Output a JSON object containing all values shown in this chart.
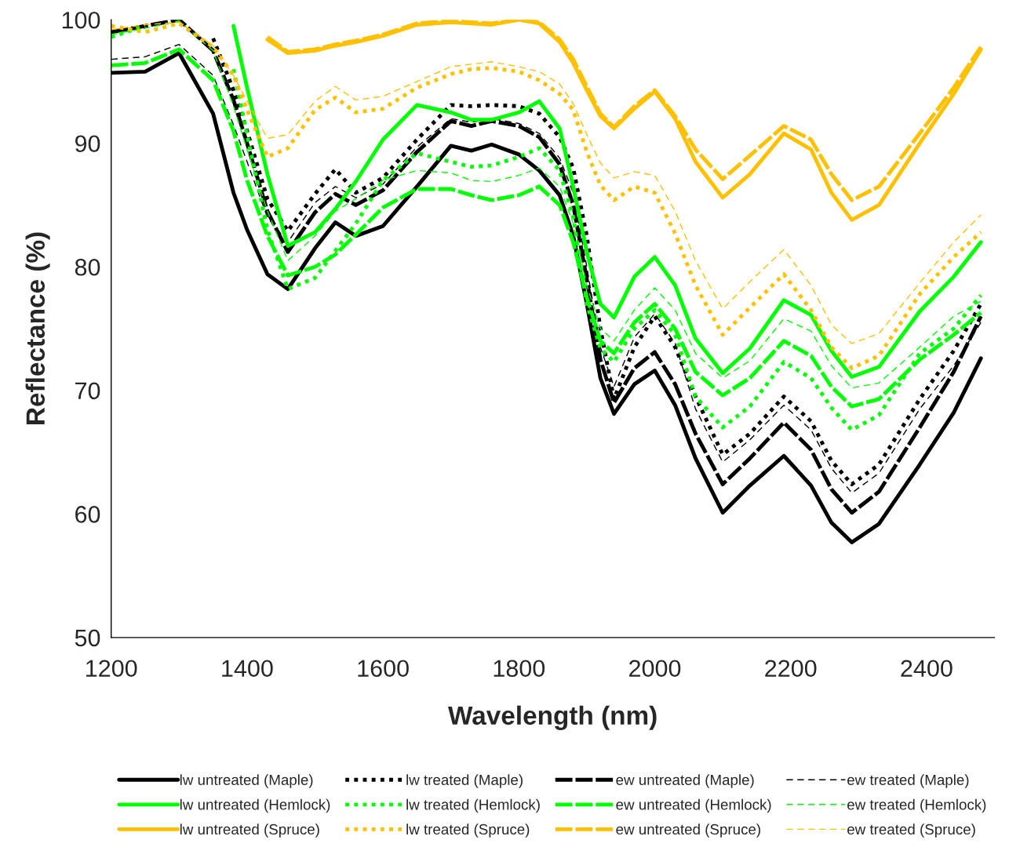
{
  "chart_data": {
    "type": "line",
    "xlabel": "Wavelength (nm)",
    "ylabel": "Reflectance (%)",
    "x": [
      1200,
      1250,
      1300,
      1350,
      1380,
      1400,
      1430,
      1460,
      1500,
      1530,
      1560,
      1600,
      1650,
      1700,
      1730,
      1760,
      1800,
      1830,
      1860,
      1880,
      1900,
      1920,
      1940,
      1970,
      2000,
      2030,
      2060,
      2100,
      2140,
      2190,
      2230,
      2260,
      2290,
      2330,
      2390,
      2440,
      2480
    ],
    "xlim": [
      1200,
      2500
    ],
    "xticks": [
      1200,
      1400,
      1600,
      1800,
      2000,
      2200,
      2400
    ],
    "ylim": [
      50,
      100
    ],
    "yticks": [
      50,
      60,
      70,
      80,
      90,
      100
    ],
    "grid": false,
    "legend": "bottom",
    "series": [
      {
        "name": "lw untreated (Maple)",
        "color": "#000000",
        "line_style": "solid",
        "values": [
          95.7,
          95.8,
          97.3,
          92.4,
          86.0,
          83.0,
          79.4,
          78.2,
          81.5,
          83.6,
          82.5,
          83.3,
          86.5,
          89.8,
          89.4,
          89.9,
          89.1,
          87.8,
          85.8,
          82.5,
          77.0,
          71.0,
          68.1,
          70.5,
          71.6,
          68.8,
          64.5,
          60.1,
          62.3,
          64.7,
          62.3,
          59.3,
          57.7,
          59.2,
          64.0,
          68.2,
          72.6
        ]
      },
      {
        "name": "lw treated (Maple)",
        "color": "#000000",
        "line_style": "dotted",
        "values": [
          null,
          null,
          null,
          98.5,
          94.3,
          91.0,
          85.5,
          82.9,
          85.9,
          87.9,
          86.0,
          87.2,
          90.3,
          93.1,
          93.0,
          93.1,
          93.0,
          92.4,
          90.5,
          88.0,
          82.5,
          75.0,
          69.3,
          73.5,
          76.0,
          73.5,
          69.5,
          64.8,
          66.5,
          69.5,
          67.5,
          64.3,
          62.4,
          64.0,
          69.3,
          73.2,
          77.0
        ]
      },
      {
        "name": "ew untreated (Maple)",
        "color": "#000000",
        "line_style": "dashed",
        "values": [
          99.0,
          99.5,
          100.0,
          97.5,
          93.5,
          90.0,
          84.5,
          81.2,
          84.4,
          85.9,
          85.0,
          86.2,
          89.3,
          91.8,
          91.4,
          91.8,
          91.4,
          90.5,
          88.3,
          85.0,
          79.0,
          72.5,
          69.0,
          71.8,
          73.1,
          70.5,
          66.5,
          62.4,
          64.5,
          67.4,
          65.2,
          62.0,
          60.1,
          61.8,
          67.0,
          71.5,
          76.0
        ]
      },
      {
        "name": "ew treated (Maple)",
        "color": "#000000",
        "line_style": "dashed",
        "values": [
          96.8,
          97.0,
          98.0,
          95.5,
          91.5,
          88.5,
          84.0,
          82.0,
          85.2,
          86.5,
          85.6,
          86.7,
          89.7,
          92.0,
          91.7,
          92.0,
          91.6,
          90.8,
          88.8,
          86.0,
          80.0,
          73.5,
          70.3,
          74.3,
          76.2,
          73.8,
          68.5,
          64.2,
          66.0,
          68.8,
          66.8,
          63.7,
          61.7,
          63.3,
          68.5,
          72.0,
          75.5
        ]
      },
      {
        "name": "lw untreated (Hemlock)",
        "color": "#00ff00",
        "line_style": "solid",
        "values": [
          null,
          null,
          null,
          null,
          99.5,
          94.5,
          87.5,
          81.7,
          82.8,
          84.7,
          86.9,
          90.3,
          93.1,
          92.5,
          91.9,
          91.9,
          92.5,
          93.4,
          91.2,
          86.5,
          81.2,
          77.0,
          75.9,
          79.2,
          80.8,
          78.5,
          74.2,
          71.4,
          73.4,
          77.3,
          76.1,
          73.2,
          71.1,
          71.9,
          76.4,
          79.2,
          82.0
        ]
      },
      {
        "name": "lw treated (Hemlock)",
        "color": "#00ff00",
        "line_style": "dotted",
        "values": [
          98.6,
          99.5,
          null,
          null,
          96.0,
          90.7,
          83.0,
          78.2,
          79.1,
          81.3,
          83.5,
          87.0,
          89.2,
          88.5,
          88.1,
          88.2,
          88.9,
          89.6,
          87.8,
          84.0,
          77.0,
          73.4,
          72.3,
          75.0,
          76.5,
          74.5,
          69.5,
          67.0,
          68.7,
          72.3,
          71.0,
          68.6,
          66.8,
          68.0,
          73.0,
          75.0,
          77.7
        ]
      },
      {
        "name": "ew untreated (Hemlock)",
        "color": "#00ff00",
        "line_style": "dashed",
        "values": [
          96.3,
          96.5,
          97.6,
          95.1,
          91.0,
          87.0,
          82.5,
          79.3,
          80.0,
          81.0,
          82.6,
          84.8,
          86.3,
          86.3,
          85.8,
          85.4,
          85.8,
          86.5,
          85.0,
          82.0,
          77.5,
          74.0,
          73.0,
          75.5,
          77.0,
          75.0,
          71.5,
          69.6,
          71.0,
          74.0,
          72.8,
          70.3,
          68.7,
          69.3,
          72.5,
          74.5,
          76.3
        ]
      },
      {
        "name": "ew treated (Hemlock)",
        "color": "#00ff00",
        "line_style": "dashed",
        "values": [
          98.8,
          99.3,
          99.9,
          97.5,
          93.0,
          89.5,
          84.5,
          80.5,
          82.5,
          84.5,
          85.5,
          87.0,
          87.8,
          87.6,
          87.0,
          86.9,
          87.4,
          88.0,
          86.5,
          83.5,
          78.5,
          75.0,
          74.0,
          76.5,
          78.3,
          76.5,
          73.0,
          71.0,
          72.4,
          75.8,
          74.8,
          72.0,
          70.2,
          70.6,
          73.5,
          76.0,
          77.2
        ]
      },
      {
        "name": "lw untreated (Spruce)",
        "color": "#ffc000",
        "line_style": "solid",
        "values": [
          null,
          null,
          null,
          null,
          null,
          null,
          98.4,
          97.3,
          97.5,
          97.9,
          98.2,
          98.7,
          99.6,
          99.8,
          99.7,
          99.6,
          100.0,
          99.7,
          98.2,
          96.5,
          94.3,
          92.2,
          91.2,
          92.8,
          94.2,
          92.0,
          88.5,
          85.6,
          87.5,
          90.8,
          89.5,
          86.0,
          83.8,
          85.0,
          90.0,
          94.0,
          97.6
        ]
      },
      {
        "name": "lw treated (Spruce)",
        "color": "#ffc000",
        "line_style": "dotted",
        "values": [
          99.5,
          99.0,
          99.7,
          97.8,
          95.5,
          92.7,
          88.9,
          89.6,
          92.7,
          93.7,
          92.5,
          92.8,
          94.5,
          95.6,
          96.0,
          96.1,
          95.8,
          95.1,
          94.0,
          92.7,
          89.3,
          86.6,
          85.4,
          86.5,
          86.0,
          82.7,
          78.5,
          74.5,
          76.7,
          79.4,
          76.5,
          73.5,
          71.8,
          72.8,
          77.8,
          80.8,
          82.8
        ]
      },
      {
        "name": "ew untreated (Spruce)",
        "color": "#ffc000",
        "line_style": "dashed",
        "values": [
          null,
          null,
          null,
          null,
          null,
          null,
          98.6,
          97.4,
          97.6,
          98.0,
          98.3,
          98.8,
          99.7,
          99.9,
          99.8,
          99.7,
          100.0,
          99.8,
          98.4,
          96.8,
          94.6,
          92.4,
          91.3,
          93.0,
          94.3,
          92.2,
          89.5,
          87.1,
          89.0,
          91.4,
          90.3,
          87.5,
          85.4,
          86.5,
          90.8,
          94.5,
          97.8
        ]
      },
      {
        "name": "ew treated (Spruce)",
        "color": "#ffc000",
        "line_style": "dashed",
        "values": [
          99.2,
          99.6,
          99.8,
          97.9,
          95.5,
          93.4,
          90.4,
          90.7,
          93.4,
          94.6,
          93.5,
          93.8,
          95.0,
          96.2,
          96.4,
          96.6,
          96.2,
          95.8,
          94.8,
          93.2,
          90.7,
          88.4,
          87.2,
          87.7,
          87.4,
          84.5,
          80.5,
          76.6,
          78.8,
          81.4,
          78.5,
          75.3,
          73.8,
          74.6,
          78.7,
          82.0,
          84.2
        ]
      }
    ]
  }
}
